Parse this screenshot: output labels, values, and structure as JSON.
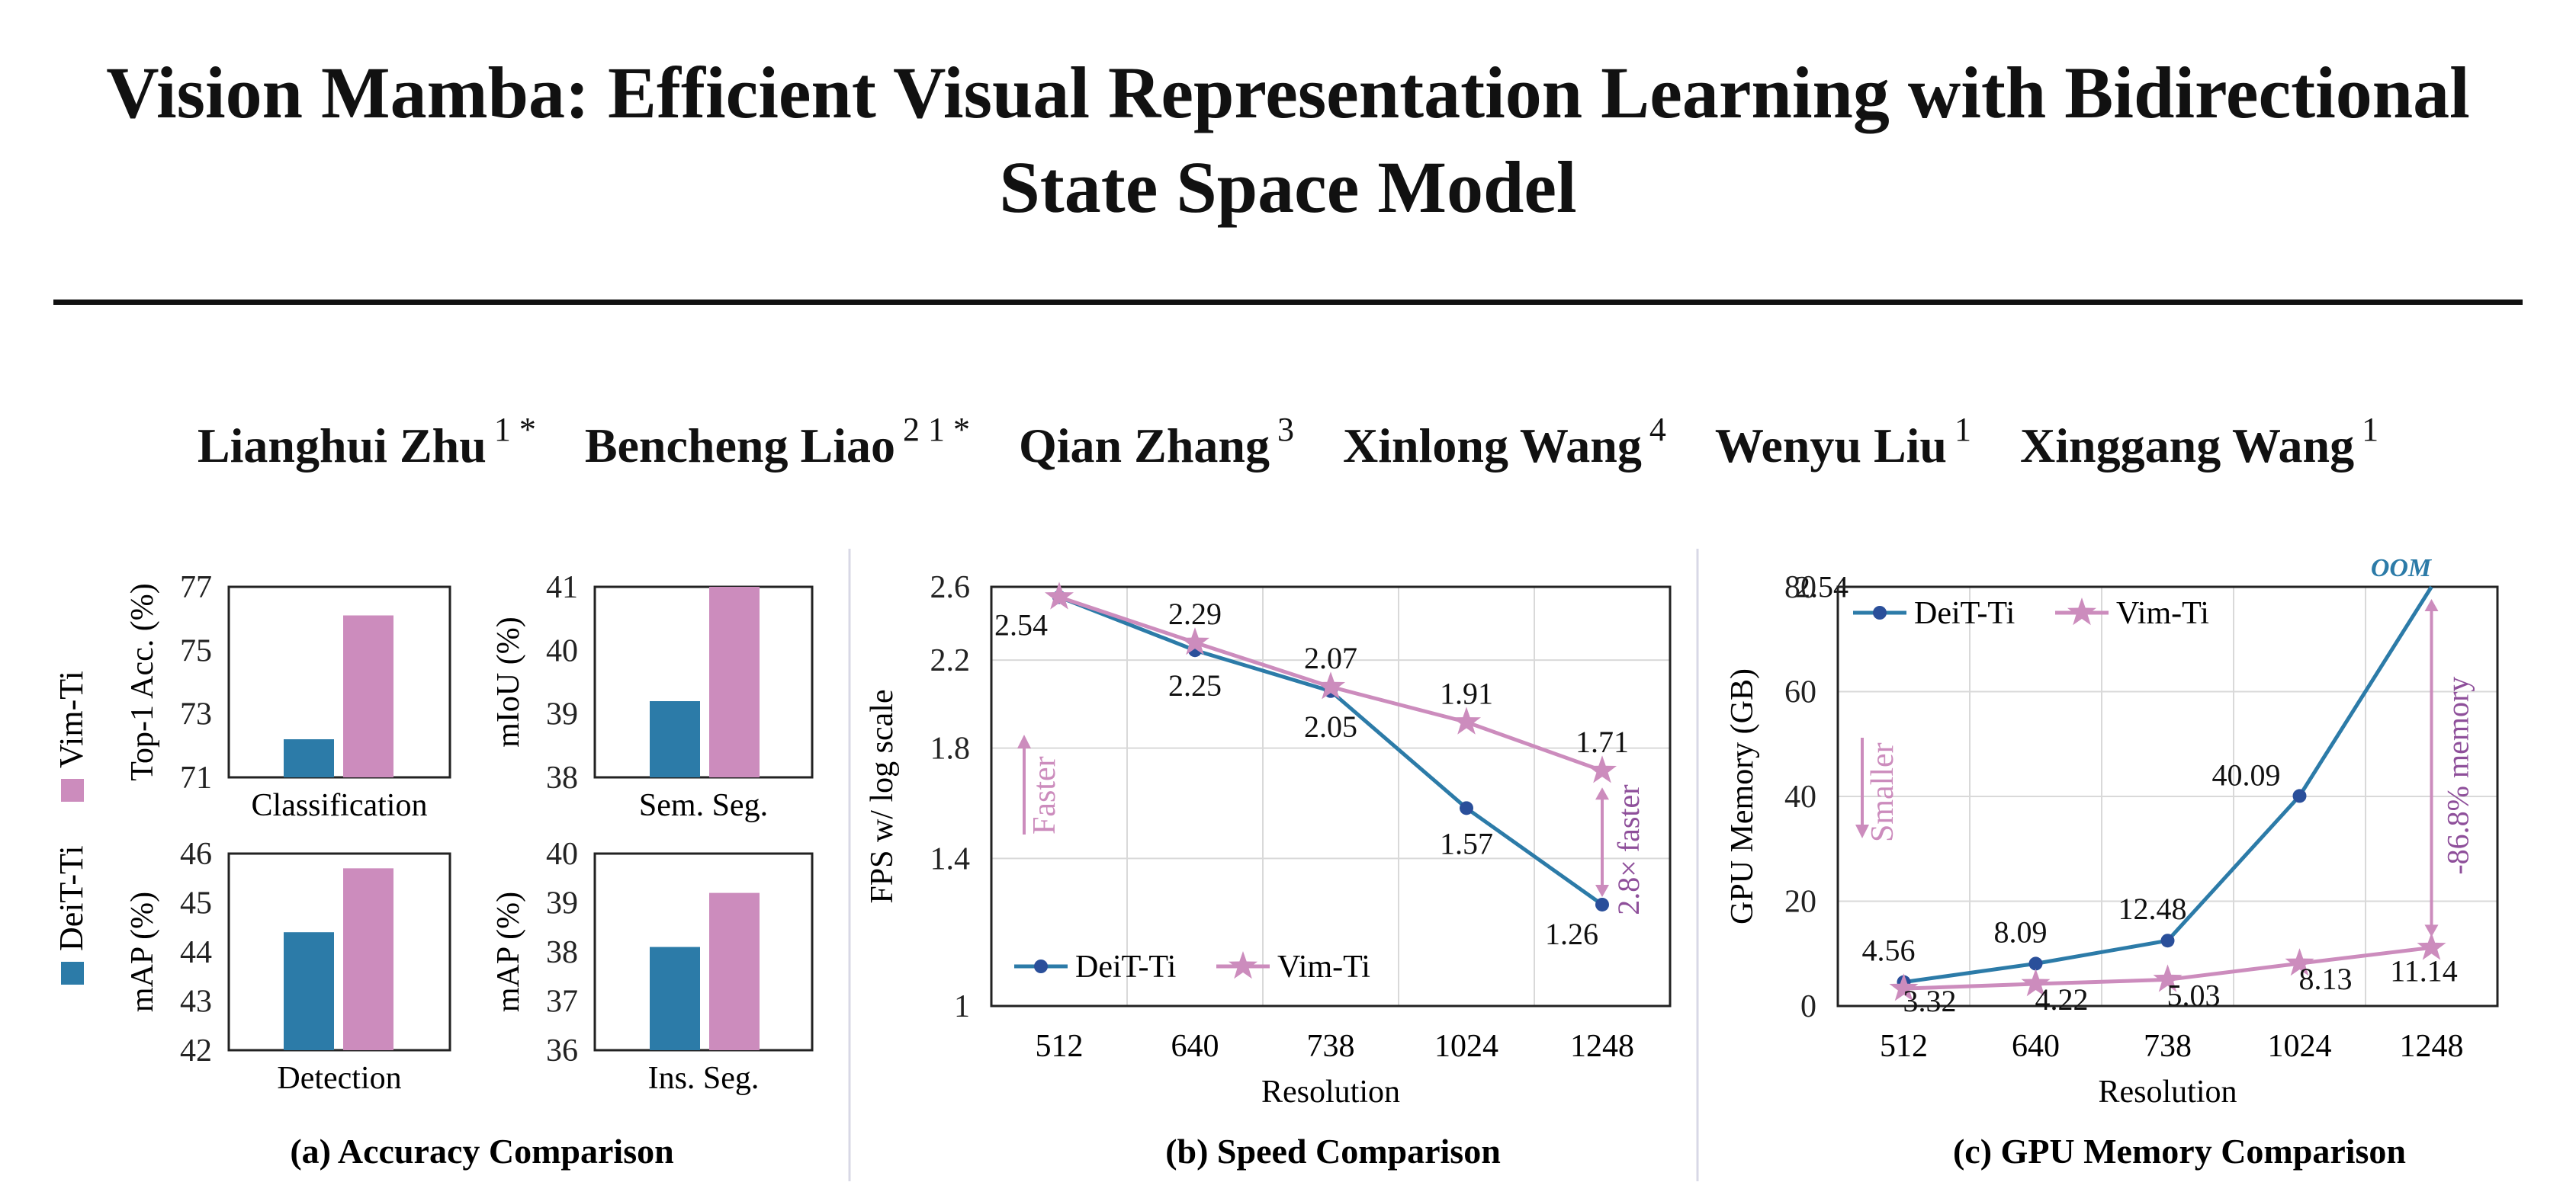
{
  "paper": {
    "title_line1": "Vision Mamba: Efficient Visual Representation Learning with Bidirectional",
    "title_line2": "State Space Model",
    "authors": [
      {
        "name": "Lianghui Zhu",
        "aff": "1 *"
      },
      {
        "name": "Bencheng Liao",
        "aff": "2 1 *"
      },
      {
        "name": "Qian Zhang",
        "aff": "3"
      },
      {
        "name": "Xinlong Wang",
        "aff": "4"
      },
      {
        "name": "Wenyu Liu",
        "aff": "1"
      },
      {
        "name": "Xinggang Wang",
        "aff": "1"
      }
    ]
  },
  "colors": {
    "deit": "#2c7ba8",
    "vim": "#cc8cbd",
    "annotation": "#8e4f9a",
    "oom": "#2c7ba8"
  },
  "legend": {
    "deit": "DeiT-Ti",
    "vim": "Vim-Ti"
  },
  "captions": {
    "a": "(a) Accuracy Comparison",
    "b": "(b) Speed Comparison",
    "c": "(c) GPU Memory Comparison"
  },
  "chart_data": [
    {
      "type": "bar",
      "panel": "a",
      "xlabel": "Classification",
      "ylabel": "Top-1 Acc. (%)",
      "ylim": [
        71,
        77
      ],
      "yticks": [
        "71",
        "73",
        "75",
        "77"
      ],
      "series": [
        {
          "name": "DeiT-Ti",
          "values": [
            72.2
          ]
        },
        {
          "name": "Vim-Ti",
          "values": [
            76.1
          ]
        }
      ]
    },
    {
      "type": "bar",
      "panel": "a",
      "xlabel": "Sem. Seg.",
      "ylabel": "mIoU (%)",
      "ylim": [
        38,
        41
      ],
      "yticks": [
        "38",
        "39",
        "40",
        "41"
      ],
      "series": [
        {
          "name": "DeiT-Ti",
          "values": [
            39.2
          ]
        },
        {
          "name": "Vim-Ti",
          "values": [
            41.0
          ]
        }
      ]
    },
    {
      "type": "bar",
      "panel": "a",
      "xlabel": "Detection",
      "ylabel": "mAP (%)",
      "ylim": [
        42,
        46
      ],
      "yticks": [
        "42",
        "43",
        "44",
        "45",
        "46"
      ],
      "series": [
        {
          "name": "DeiT-Ti",
          "values": [
            44.4
          ]
        },
        {
          "name": "Vim-Ti",
          "values": [
            45.7
          ]
        }
      ]
    },
    {
      "type": "bar",
      "panel": "a",
      "xlabel": "Ins. Seg.",
      "ylabel": "mAP (%)",
      "ylim": [
        36,
        40
      ],
      "yticks": [
        "36",
        "37",
        "38",
        "39",
        "40"
      ],
      "series": [
        {
          "name": "DeiT-Ti",
          "values": [
            38.1
          ]
        },
        {
          "name": "Vim-Ti",
          "values": [
            39.2
          ]
        }
      ]
    },
    {
      "type": "line",
      "panel": "b",
      "scale": "log",
      "xlabel": "Resolution",
      "ylabel": "FPS w/ log scale",
      "categories": [
        "512",
        "640",
        "738",
        "1024",
        "1248"
      ],
      "ylim": [
        1,
        2.6
      ],
      "yticks": [
        "1",
        "1.4",
        "1.8",
        "2.2",
        "2.6"
      ],
      "series": [
        {
          "name": "DeiT-Ti",
          "values": [
            2.54,
            2.25,
            2.05,
            1.57,
            1.26
          ],
          "labels": [
            "2.54",
            "2.25",
            "2.05",
            "1.57",
            "1.26"
          ]
        },
        {
          "name": "Vim-Ti",
          "values": [
            2.54,
            2.29,
            2.07,
            1.91,
            1.71
          ],
          "labels": [
            "2.54",
            "2.29",
            "2.07",
            "1.91",
            "1.71"
          ]
        }
      ],
      "annotations": {
        "direction": "Faster",
        "ratio": "2.8× faster"
      }
    },
    {
      "type": "line",
      "panel": "c",
      "xlabel": "Resolution",
      "ylabel": "GPU Memory (GB)",
      "categories": [
        "512",
        "640",
        "738",
        "1024",
        "1248"
      ],
      "ylim": [
        0,
        80
      ],
      "yticks": [
        "0",
        "20",
        "40",
        "60",
        "80"
      ],
      "series": [
        {
          "name": "DeiT-Ti",
          "values": [
            4.56,
            8.09,
            12.48,
            40.09,
            80
          ],
          "labels": [
            "4.56",
            "8.09",
            "12.48",
            "40.09",
            ""
          ]
        },
        {
          "name": "Vim-Ti",
          "values": [
            3.32,
            4.22,
            5.03,
            8.13,
            11.14
          ],
          "labels": [
            "3.32",
            "4.22",
            "5.03",
            "8.13",
            "11.14"
          ]
        }
      ],
      "annotations": {
        "oom": "OOM",
        "direction": "Smaller",
        "ratio": "-86.8% memory"
      }
    }
  ]
}
